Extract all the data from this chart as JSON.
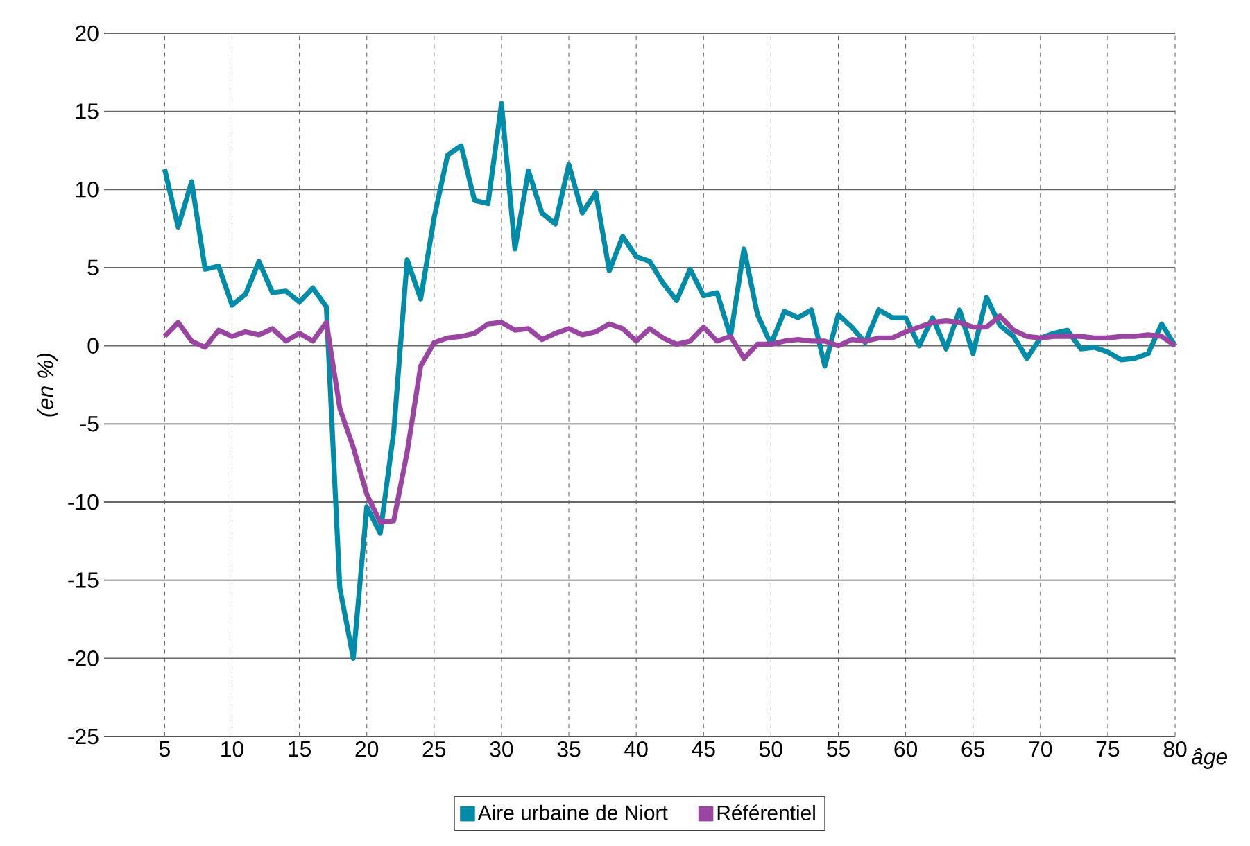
{
  "chart_data": {
    "type": "line",
    "xlabel": "âge",
    "ylabel": "*(en %)*",
    "x": [
      5,
      6,
      7,
      8,
      9,
      10,
      11,
      12,
      13,
      14,
      15,
      16,
      17,
      18,
      19,
      20,
      21,
      22,
      23,
      24,
      25,
      26,
      27,
      28,
      29,
      30,
      31,
      32,
      33,
      34,
      35,
      36,
      37,
      38,
      39,
      40,
      41,
      42,
      43,
      44,
      45,
      46,
      47,
      48,
      49,
      50,
      51,
      52,
      53,
      54,
      55,
      56,
      57,
      58,
      59,
      60,
      61,
      62,
      63,
      64,
      65,
      66,
      67,
      68,
      69,
      70,
      71,
      72,
      73,
      74,
      75,
      76,
      77,
      78,
      79,
      80
    ],
    "series": [
      {
        "name": "Aire urbaine de Niort",
        "color": "#008ba8",
        "values": [
          11.3,
          7.6,
          10.5,
          4.9,
          5.1,
          2.6,
          3.3,
          5.4,
          3.4,
          3.5,
          2.8,
          3.7,
          2.5,
          -15.5,
          -20,
          -10.3,
          -12,
          -5.5,
          5.5,
          3,
          8.2,
          12.2,
          12.8,
          9.3,
          9.1,
          15.5,
          6.2,
          11.2,
          8.5,
          7.8,
          11.6,
          8.5,
          9.8,
          4.8,
          7.0,
          5.7,
          5.4,
          4.0,
          2.9,
          4.9,
          3.2,
          3.4,
          0.6,
          6.2,
          2.0,
          0.1,
          2.2,
          1.8,
          2.3,
          -1.3,
          2.0,
          1.2,
          0.2,
          2.3,
          1.8,
          1.8,
          0,
          1.8,
          -0.2,
          2.3,
          -0.5,
          3.1,
          1.3,
          0.6,
          -0.8,
          0.5,
          0.8,
          1.0,
          -0.2,
          -0.1,
          -0.4,
          -0.9,
          -0.8,
          -0.5,
          1.4,
          0
        ]
      },
      {
        "name": "Référentiel",
        "color": "#9b45a3",
        "values": [
          0.6,
          1.5,
          0.3,
          -0.1,
          1.0,
          0.6,
          0.9,
          0.7,
          1.1,
          0.3,
          0.8,
          0.3,
          1.5,
          -4,
          -6.5,
          -9.5,
          -11.3,
          -11.2,
          -6.8,
          -1.3,
          0.2,
          0.5,
          0.6,
          0.8,
          1.4,
          1.5,
          1.0,
          1.1,
          0.4,
          0.8,
          1.1,
          0.7,
          0.9,
          1.4,
          1.1,
          0.3,
          1.1,
          0.5,
          0.1,
          0.3,
          1.2,
          0.3,
          0.6,
          -0.8,
          0.1,
          0.1,
          0.3,
          0.4,
          0.3,
          0.3,
          0.0,
          0.4,
          0.3,
          0.5,
          0.5,
          0.9,
          1.2,
          1.5,
          1.6,
          1.5,
          1.2,
          1.2,
          1.9,
          1.0,
          0.6,
          0.5,
          0.6,
          0.6,
          0.6,
          0.5,
          0.5,
          0.6,
          0.6,
          0.7,
          0.6,
          0.0
        ]
      }
    ],
    "xlim": [
      0.5,
      80
    ],
    "xticks": [
      5,
      10,
      15,
      20,
      25,
      30,
      35,
      40,
      45,
      50,
      55,
      60,
      65,
      70,
      75,
      80
    ],
    "ylim": [
      -25,
      20
    ],
    "yticks": [
      -25,
      -20,
      -15,
      -10,
      -5,
      0,
      5,
      10,
      15,
      20
    ],
    "grid": true,
    "legend": "bottom"
  }
}
